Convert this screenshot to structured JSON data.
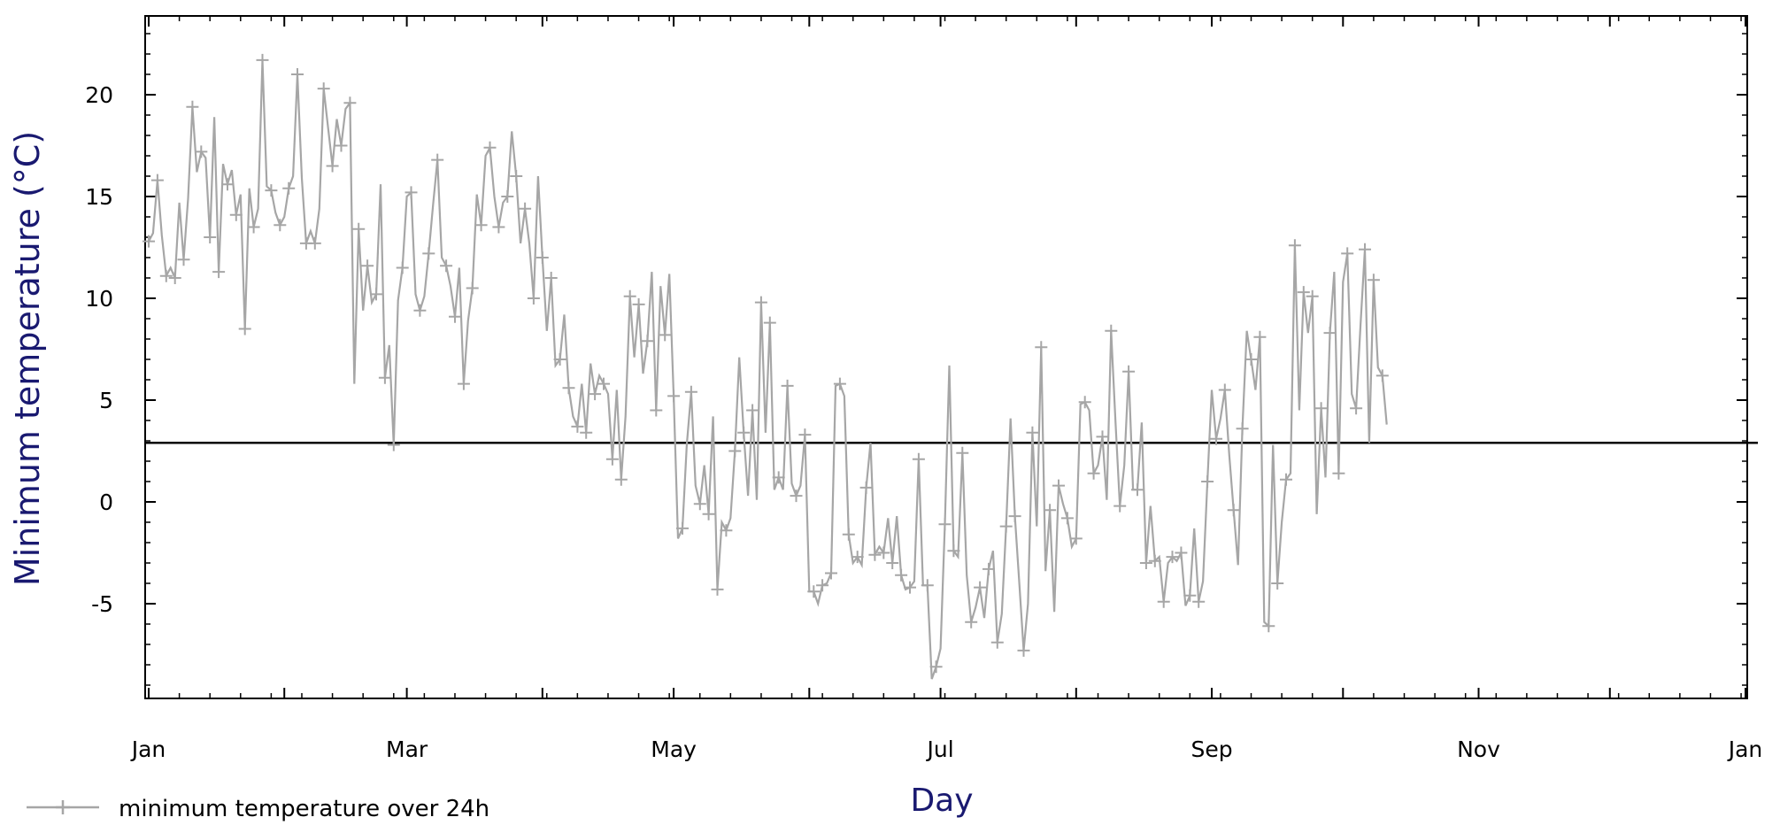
{
  "chart_data": {
    "type": "line",
    "xlabel": "Day",
    "ylabel": "Minimum temperature (°C)",
    "x_ticks": [
      "Jan",
      "Mar",
      "May",
      "Jul",
      "Sep",
      "Nov",
      "Jan"
    ],
    "y_ticks": [
      "20",
      "15",
      "10",
      "5",
      "0",
      "-5"
    ],
    "x_range_days": [
      0,
      365
    ],
    "ylim": [
      -9.5,
      23.5
    ],
    "reference_line": 2.9,
    "grid": false,
    "legend_position": "bottom-left",
    "series": [
      {
        "name": "minimum temperature over 24h",
        "color": "#a6a6a6",
        "marker": "plus",
        "values": [
          12.8,
          13.2,
          15.8,
          13.1,
          11.1,
          11.5,
          11.0,
          14.7,
          11.9,
          14.9,
          19.4,
          16.2,
          17.2,
          16.9,
          13.0,
          18.9,
          11.3,
          16.6,
          15.6,
          16.3,
          14.1,
          15.1,
          8.5,
          15.4,
          13.5,
          14.4,
          21.7,
          15.5,
          15.3,
          14.2,
          13.6,
          14.0,
          15.4,
          16.0,
          21.0,
          15.9,
          12.7,
          13.3,
          12.7,
          14.4,
          20.3,
          18.4,
          16.5,
          18.8,
          17.5,
          19.3,
          19.6,
          5.8,
          13.4,
          9.4,
          11.6,
          9.8,
          10.2,
          15.6,
          6.1,
          7.7,
          2.8,
          9.9,
          11.5,
          15.0,
          15.2,
          10.2,
          9.4,
          10.1,
          12.2,
          14.6,
          16.8,
          12.0,
          11.6,
          10.6,
          9.1,
          11.5,
          5.8,
          8.9,
          10.5,
          15.1,
          13.6,
          17.0,
          17.4,
          15.0,
          13.5,
          14.7,
          15.0,
          18.2,
          16.0,
          12.7,
          14.4,
          12.7,
          10.0,
          16.0,
          12.0,
          8.4,
          11.0,
          6.7,
          7.0,
          9.2,
          5.6,
          4.2,
          3.7,
          5.8,
          3.4,
          6.8,
          5.3,
          6.2,
          5.8,
          5.3,
          2.1,
          5.5,
          1.1,
          4.2,
          10.1,
          7.1,
          9.7,
          6.3,
          7.9,
          11.3,
          4.5,
          10.6,
          8.2,
          11.2,
          5.2,
          -1.8,
          -1.3,
          2.8,
          5.4,
          0.8,
          -0.1,
          1.8,
          -0.6,
          4.2,
          -4.3,
          -1.0,
          -1.4,
          -0.8,
          2.5,
          7.1,
          3.4,
          0.3,
          4.5,
          0.1,
          9.8,
          3.4,
          8.8,
          0.6,
          1.2,
          0.6,
          5.7,
          0.9,
          0.3,
          0.8,
          3.3,
          -4.4,
          -4.4,
          -5.0,
          -4.1,
          -4.0,
          -3.5,
          5.7,
          5.8,
          5.2,
          -1.6,
          -3.0,
          -2.7,
          -3.1,
          0.7,
          2.9,
          -2.6,
          -2.2,
          -2.5,
          -0.8,
          -3.0,
          -0.7,
          -3.6,
          -4.3,
          -4.2,
          -3.9,
          2.1,
          -4.1,
          -4.1,
          -8.7,
          -8.1,
          -7.2,
          -1.1,
          6.7,
          -2.4,
          -2.7,
          2.4,
          -3.6,
          -5.9,
          -5.2,
          -4.2,
          -5.7,
          -3.3,
          -2.4,
          -6.9,
          -5.5,
          -1.2,
          4.1,
          -0.7,
          -4.0,
          -7.3,
          -5.0,
          3.4,
          -1.2,
          7.6,
          -3.4,
          -0.4,
          -5.4,
          0.8,
          -0.1,
          -0.8,
          -2.2,
          -1.8,
          4.8,
          4.9,
          4.5,
          1.4,
          1.8,
          3.2,
          0.1,
          8.4,
          3.9,
          -0.2,
          1.8,
          6.4,
          0.6,
          0.6,
          3.9,
          -3.0,
          -0.2,
          -2.9,
          -2.7,
          -4.9,
          -3.0,
          -2.7,
          -2.9,
          -2.5,
          -5.1,
          -4.6,
          -1.3,
          -4.9,
          -3.9,
          1.0,
          5.5,
          3.1,
          4.1,
          5.5,
          2.3,
          -0.4,
          -3.1,
          3.6,
          8.4,
          7.0,
          5.5,
          8.1,
          -5.9,
          -6.1,
          2.8,
          -4.0,
          -1.0,
          1.1,
          1.4,
          12.6,
          4.5,
          10.3,
          8.3,
          10.1,
          -0.6,
          4.6,
          1.2,
          8.3,
          11.3,
          1.4,
          10.8,
          12.2,
          5.3,
          4.6,
          8.7,
          12.4,
          2.9,
          10.9,
          6.6,
          6.2,
          3.8
        ]
      }
    ]
  }
}
